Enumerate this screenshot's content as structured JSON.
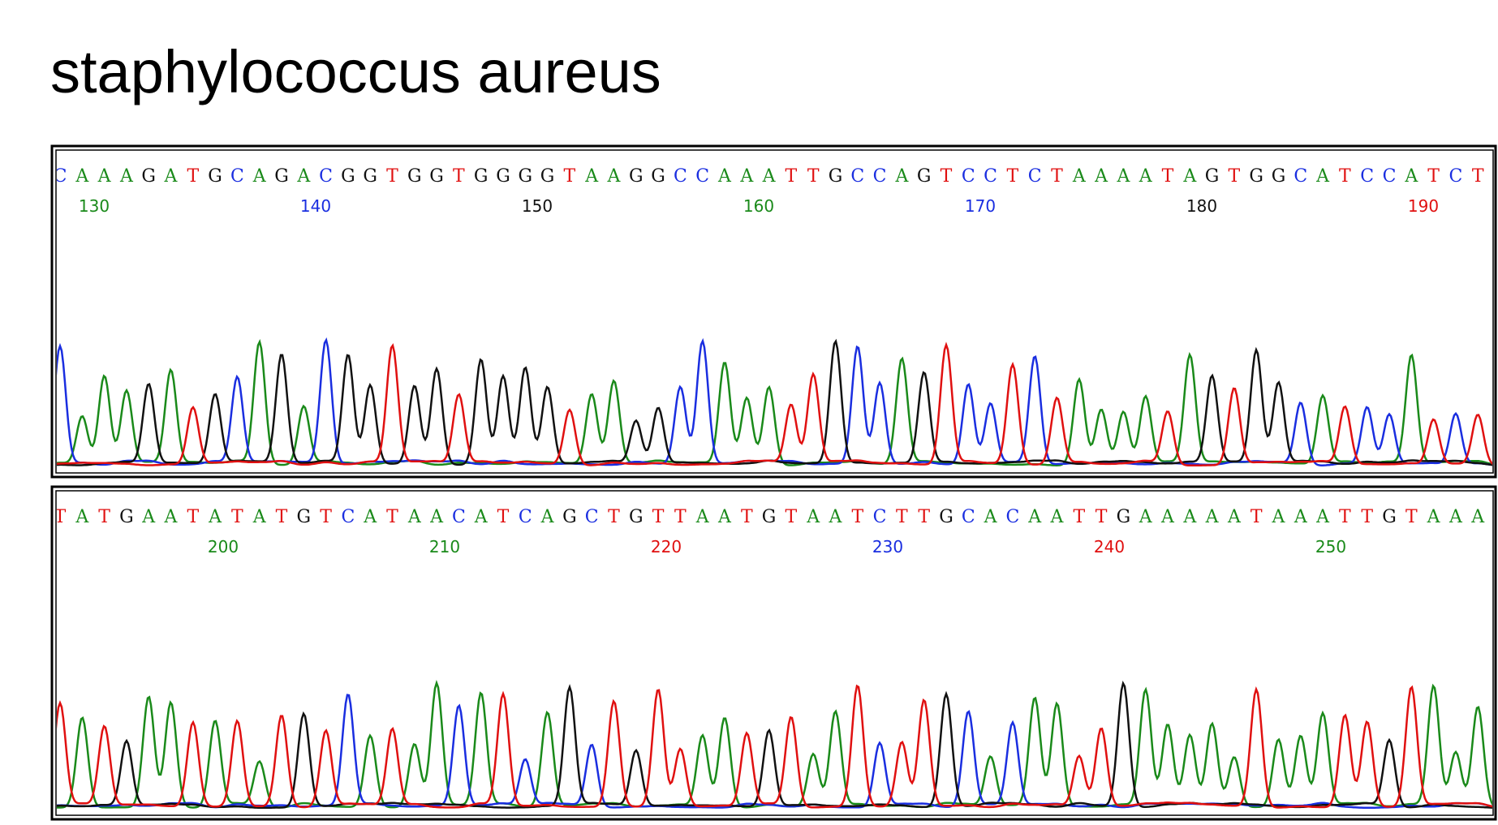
{
  "title": "staphylococcus aureus",
  "panels": [
    {
      "bases": [
        "C",
        "A",
        "A",
        "A",
        "G",
        "A",
        "T",
        "G",
        "C",
        "A",
        "G",
        "A",
        "C",
        "G",
        "G",
        "T",
        "G",
        "G",
        "T",
        "G",
        "G",
        "G",
        "G",
        "T",
        "A",
        "A",
        "G",
        "G",
        "C",
        "C",
        "A",
        "A",
        "A",
        "T",
        "T",
        "G",
        "C",
        "C",
        "A",
        "G",
        "T",
        "C",
        "C",
        "T",
        "C",
        "T",
        "A",
        "A",
        "A",
        "A",
        "T",
        "A",
        "G",
        "T",
        "G",
        "G",
        "C",
        "A",
        "T",
        "C",
        "C",
        "A",
        "T",
        "C",
        "T"
      ],
      "positions": [
        130,
        140,
        150,
        160,
        170,
        180,
        190
      ]
    },
    {
      "bases": [
        "T",
        "A",
        "T",
        "G",
        "A",
        "A",
        "T",
        "A",
        "T",
        "A",
        "T",
        "G",
        "T",
        "C",
        "A",
        "T",
        "A",
        "A",
        "C",
        "A",
        "T",
        "C",
        "A",
        "G",
        "C",
        "T",
        "G",
        "T",
        "T",
        "A",
        "A",
        "T",
        "G",
        "T",
        "A",
        "A",
        "T",
        "C",
        "T",
        "T",
        "G",
        "C",
        "A",
        "C",
        "A",
        "A",
        "T",
        "T",
        "G",
        "A",
        "A",
        "A",
        "A",
        "A",
        "T",
        "A",
        "A",
        "A",
        "T",
        "T",
        "G",
        "T",
        "A",
        "A",
        "A"
      ],
      "positions": [
        200,
        210,
        220,
        230,
        240,
        250
      ]
    }
  ]
}
